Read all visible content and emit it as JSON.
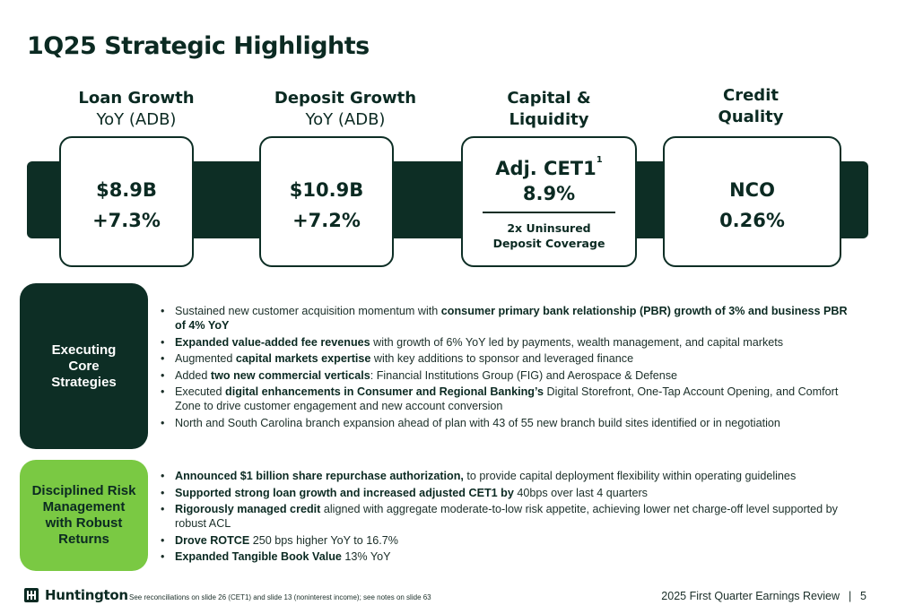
{
  "title": "1Q25 Strategic Highlights",
  "columns": [
    {
      "line1": "Loan Growth",
      "line2": "YoY (ADB)"
    },
    {
      "line1": "Deposit Growth",
      "line2": "YoY (ADB)"
    },
    {
      "line1": "Capital &",
      "line2": "Liquidity"
    },
    {
      "line1": "Credit",
      "line2": "Quality"
    }
  ],
  "cards": {
    "loan": {
      "amount": "$8.9B",
      "pct": "+7.3%"
    },
    "deposit": {
      "amount": "$10.9B",
      "pct": "+7.2%"
    },
    "capital": {
      "label": "Adj. CET1",
      "footnote": "1",
      "value": "8.9%",
      "sub1": "2x Uninsured",
      "sub2": "Deposit Coverage"
    },
    "credit": {
      "label": "NCO",
      "value": "0.26%"
    }
  },
  "sections": {
    "executing": {
      "label": [
        "Executing",
        "Core",
        "Strategies"
      ],
      "bullets": [
        {
          "pre": "Sustained new customer acquisition momentum with ",
          "bold": "consumer primary bank relationship (PBR) growth of 3% and business PBR of 4% YoY",
          "post": ""
        },
        {
          "pre": "",
          "bold": "Expanded value-added fee revenues",
          "post": " with growth of 6% YoY led by payments, wealth management, and capital markets"
        },
        {
          "pre": "Augmented ",
          "bold": "capital markets expertise",
          "post": " with key additions to sponsor and leveraged finance"
        },
        {
          "pre": "Added ",
          "bold": "two new commercial verticals",
          "post": ": Financial Institutions Group (FIG) and Aerospace & Defense"
        },
        {
          "pre": "Executed ",
          "bold": "digital enhancements in Consumer and Regional Banking’s",
          "post": " Digital Storefront, One-Tap Account Opening, and Comfort Zone to drive customer engagement and new account conversion"
        },
        {
          "pre": "North and South Carolina branch expansion ahead of plan with 43 of 55 new branch build sites identified or in negotiation",
          "bold": "",
          "post": ""
        }
      ]
    },
    "disciplined": {
      "label": [
        "Disciplined Risk",
        "Management",
        "with Robust",
        "Returns"
      ],
      "bullets": [
        {
          "pre": "",
          "bold": "Announced $1 billion share repurchase authorization,",
          "post": " to provide capital deployment flexibility within operating guidelines"
        },
        {
          "pre": "",
          "bold": "Supported strong loan growth and increased adjusted CET1 by",
          "post": " 40bps over last 4 quarters"
        },
        {
          "pre": "",
          "bold": "Rigorously managed credit",
          "post": " aligned with aggregate moderate-to-low risk appetite, achieving lower net charge-off level supported by robust ACL"
        },
        {
          "pre": "",
          "bold": "Drove ROTCE",
          "post": " 250 bps higher YoY to 16.7%"
        },
        {
          "pre": "",
          "bold": "Expanded Tangible Book Value",
          "post": " 13% YoY"
        }
      ]
    }
  },
  "footer": {
    "logo": "Huntington",
    "logo_icon": "huntington-lodge-icon",
    "note": "See reconciliations on slide 26 (CET1) and slide 13 (noninterest income); see notes on slide 63",
    "right": "2025 First Quarter Earnings Review",
    "separator": "|",
    "page": "5"
  },
  "colors": {
    "dark_green": "#0d2e25",
    "lime": "#7ac943"
  }
}
